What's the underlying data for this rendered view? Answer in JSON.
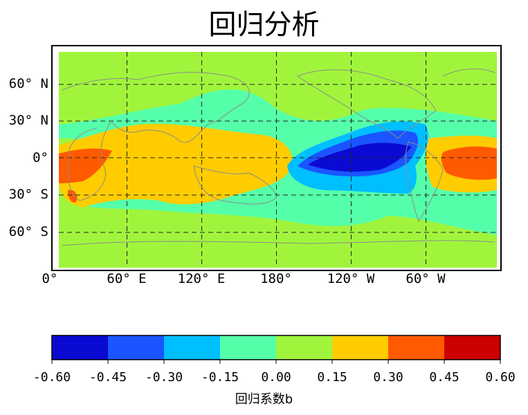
{
  "chart_data": {
    "type": "heatmap",
    "title": "回归分析",
    "map": "global filled-contour map of regression coefficient b, Pacific-centered, with coastlines and dashed 60° graticule",
    "lat_tick_labels": [
      "60° N",
      "30° N",
      "0°",
      "30° S",
      "60° S"
    ],
    "lon_tick_labels": [
      "0°",
      "60° E",
      "120° E",
      "180°",
      "120° W",
      "60° W"
    ],
    "grid": true,
    "colorbar": {
      "label": "回归系数b",
      "levels": [
        -0.6,
        -0.45,
        -0.3,
        -0.15,
        0.0,
        0.15,
        0.3,
        0.45,
        0.6
      ],
      "tick_labels": [
        "-0.60",
        "-0.45",
        "-0.30",
        "-0.15",
        "0.00",
        "0.15",
        "0.30",
        "0.45",
        "0.60"
      ],
      "colors": [
        "#0a0ad2",
        "#1a55ff",
        "#00bfff",
        "#55ffaa",
        "#a0f53c",
        "#ffcc00",
        "#ff5a00",
        "#cc0000"
      ]
    }
  }
}
